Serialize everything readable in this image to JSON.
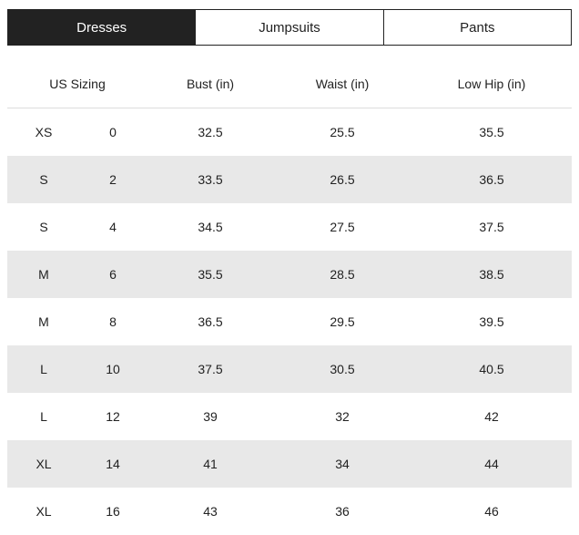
{
  "tabs": [
    "Dresses",
    "Jumpsuits",
    "Pants"
  ],
  "table": {
    "headers": [
      "US Sizing",
      "Bust (in)",
      "Waist (in)",
      "Low Hip (in)"
    ],
    "rows": [
      [
        "XS",
        "0",
        "32.5",
        "25.5",
        "35.5"
      ],
      [
        "S",
        "2",
        "33.5",
        "26.5",
        "36.5"
      ],
      [
        "S",
        "4",
        "34.5",
        "27.5",
        "37.5"
      ],
      [
        "M",
        "6",
        "35.5",
        "28.5",
        "38.5"
      ],
      [
        "M",
        "8",
        "36.5",
        "29.5",
        "39.5"
      ],
      [
        "L",
        "10",
        "37.5",
        "30.5",
        "40.5"
      ],
      [
        "L",
        "12",
        "39",
        "32",
        "42"
      ],
      [
        "XL",
        "14",
        "41",
        "34",
        "44"
      ],
      [
        "XL",
        "16",
        "43",
        "36",
        "46"
      ]
    ]
  }
}
